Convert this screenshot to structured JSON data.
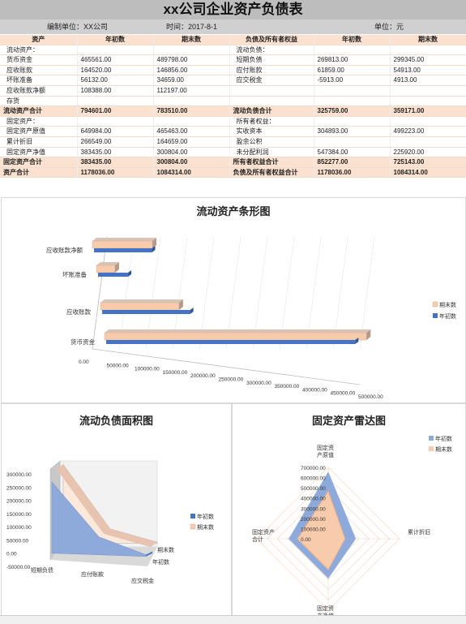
{
  "title": "xx公司企业资产负债表",
  "meta": {
    "unit_label": "编制单位：XX公司",
    "date_label": "时间：2017-8-1",
    "currency_label": "单位：元"
  },
  "table": {
    "headers": [
      "资产",
      "年初数",
      "期末数",
      "负债及所有者权益",
      "年初数",
      "期末数"
    ],
    "rows": [
      {
        "cells": [
          "流动资产：",
          "",
          "",
          "流动负债：",
          "",
          ""
        ],
        "sum": false
      },
      {
        "cells": [
          "货币资金",
          "465561.00",
          "489798.00",
          "短期负债",
          "269813.00",
          "299345.00"
        ],
        "sum": false
      },
      {
        "cells": [
          "应收账款",
          "164520.00",
          "146856.00",
          "应付账款",
          "61859.00",
          "54913.00"
        ],
        "sum": false
      },
      {
        "cells": [
          "坏账准备",
          "56132.00",
          "34659.00",
          "应交税金",
          "-5913.00",
          "4913.00"
        ],
        "sum": false
      },
      {
        "cells": [
          "应收账款净额",
          "108388.00",
          "112197.00",
          "",
          "",
          ""
        ],
        "sum": false
      },
      {
        "cells": [
          "存货",
          "",
          "",
          "",
          "",
          ""
        ],
        "sum": false
      },
      {
        "cells": [
          "流动资产合计",
          "794601.00",
          "783510.00",
          "流动负债合计",
          "325759.00",
          "359171.00"
        ],
        "sum": true
      },
      {
        "cells": [
          "固定资产：",
          "",
          "",
          "所有者权益：",
          "",
          ""
        ],
        "sum": false
      },
      {
        "cells": [
          "固定资产原值",
          "649984.00",
          "465463.00",
          "实收资本",
          "304893.00",
          "499223.00"
        ],
        "sum": false
      },
      {
        "cells": [
          "累计折旧",
          "266549.00",
          "164659.00",
          "盈余公积",
          "",
          ""
        ],
        "sum": false
      },
      {
        "cells": [
          "固定资产净值",
          "383435.00",
          "300804.00",
          "未分配利润",
          "547384.00",
          "225920.00"
        ],
        "sum": false
      },
      {
        "cells": [
          "固定资产合计",
          "383435.00",
          "300804.00",
          "所有者权益合计",
          "852277.00",
          "725143.00"
        ],
        "sum": true
      },
      {
        "cells": [
          "资产合计",
          "1178036.00",
          "1084314.00",
          "负债及所有者权益合计",
          "1178036.00",
          "1084314.00"
        ],
        "sum": true
      }
    ]
  },
  "colors": {
    "begin": "#4472c4",
    "end": "#f8cbad",
    "header_bg": "#fbe2d0"
  },
  "charts": {
    "bar": {
      "title": "流动资产条形图"
    },
    "area": {
      "title": "流动负债面积图"
    },
    "radar": {
      "title": "固定资产雷达图"
    }
  },
  "chart_data": [
    {
      "type": "bar",
      "title": "流动资产条形图",
      "orientation": "horizontal",
      "categories": [
        "货币资金",
        "应收账款",
        "坏账准备",
        "应收账款净额"
      ],
      "series": [
        {
          "name": "年初数",
          "values": [
            465561,
            164520,
            56132,
            108388
          ]
        },
        {
          "name": "期末数",
          "values": [
            489798,
            146856,
            34659,
            112197
          ]
        }
      ],
      "xticks": [
        "0.00",
        "50000.00",
        "100000.00",
        "150000.00",
        "200000.00",
        "250000.00",
        "300000.00",
        "350000.00",
        "400000.00",
        "450000.00",
        "500000.00"
      ],
      "xlim": [
        0,
        500000
      ],
      "legend": "right"
    },
    {
      "type": "area",
      "title": "流动负债面积图",
      "categories": [
        "短期负债",
        "应付账款",
        "应交税金"
      ],
      "series": [
        {
          "name": "年初数",
          "values": [
            269813,
            61859,
            -5913
          ]
        },
        {
          "name": "期末数",
          "values": [
            299345,
            54913,
            4913
          ]
        }
      ],
      "yticks": [
        "300000.00",
        "250000.00",
        "200000.00",
        "150000.00",
        "100000.00",
        "50000.00",
        "0.00",
        "-50000.00"
      ],
      "ylim": [
        -50000,
        300000
      ],
      "legend": "right"
    },
    {
      "type": "radar",
      "title": "固定资产雷达图",
      "categories": [
        "固定资产原值",
        "累计折旧",
        "固定资产净值",
        "固定资产合计"
      ],
      "axis_labels": [
        "固定资产原值",
        "累计折旧",
        "固定资产净值",
        "固定资产合计"
      ],
      "series": [
        {
          "name": "年初数",
          "values": [
            649984,
            266549,
            383435,
            383435
          ]
        },
        {
          "name": "期末数",
          "values": [
            465463,
            164659,
            300804,
            300804
          ]
        }
      ],
      "rticks": [
        "700000.00",
        "600000.00",
        "500000.00",
        "400000.00",
        "300000.00",
        "200000.00",
        "100000.00",
        "0.00"
      ],
      "rlim": [
        0,
        700000
      ],
      "legend": "top-right"
    }
  ]
}
